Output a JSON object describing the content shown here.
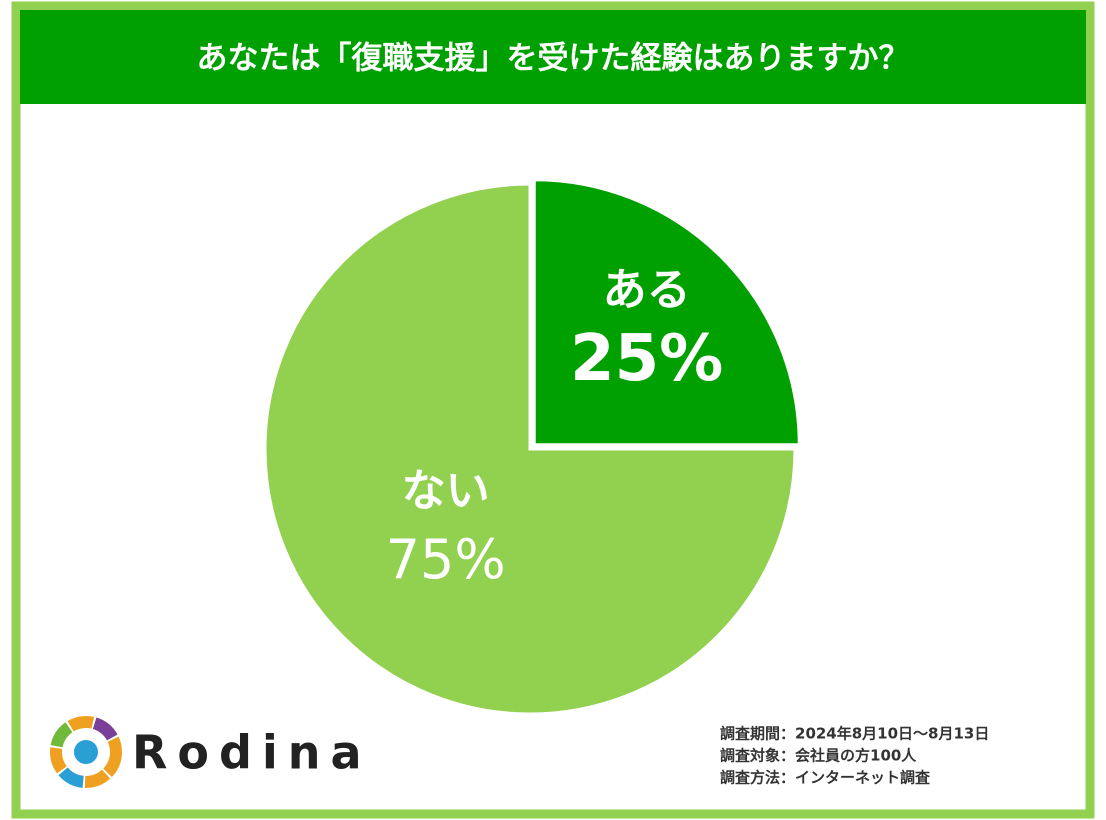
{
  "chart_data": {
    "type": "pie",
    "title": "あなたは「復職支援」を受けた経験はありますか？",
    "categories": [
      "ある",
      "ない"
    ],
    "values": [
      25,
      75
    ],
    "value_labels": [
      "25%",
      "75%"
    ],
    "colors": [
      "#00a000",
      "#92d050"
    ],
    "notes": [
      "調査期間：2024年8月10日～8月13日",
      "調査対象：会社員の方100人",
      "調査方法：インターネット調査"
    ],
    "brand": "Rodina"
  }
}
